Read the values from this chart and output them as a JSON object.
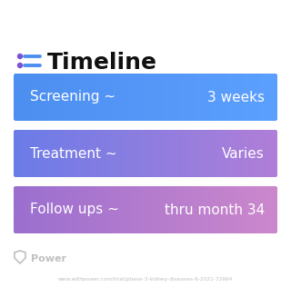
{
  "title": "Timeline",
  "background_color": "#ffffff",
  "rows": [
    {
      "label": "Screening ~",
      "value": "3 weeks",
      "color_left": "#4D8FF0",
      "color_right": "#5B9FFF"
    },
    {
      "label": "Treatment ~",
      "value": "Varies",
      "color_left": "#6B7CE8",
      "color_right": "#B07FD8"
    },
    {
      "label": "Follow ups ~",
      "value": "thru month 34",
      "color_left": "#9B6FD0",
      "color_right": "#CC88CC"
    }
  ],
  "title_color": "#111111",
  "title_fontsize": 18,
  "label_fontsize": 11,
  "value_fontsize": 11,
  "icon_color_dot": "#7B52D4",
  "icon_color_line": "#4D8FF0",
  "watermark_text": "Power",
  "url_text": "www.withpower.com/trial/phase-3-kidney-diseases-6-2021-72664",
  "watermark_color": "#c0c0c0",
  "url_color": "#c0c0c0"
}
